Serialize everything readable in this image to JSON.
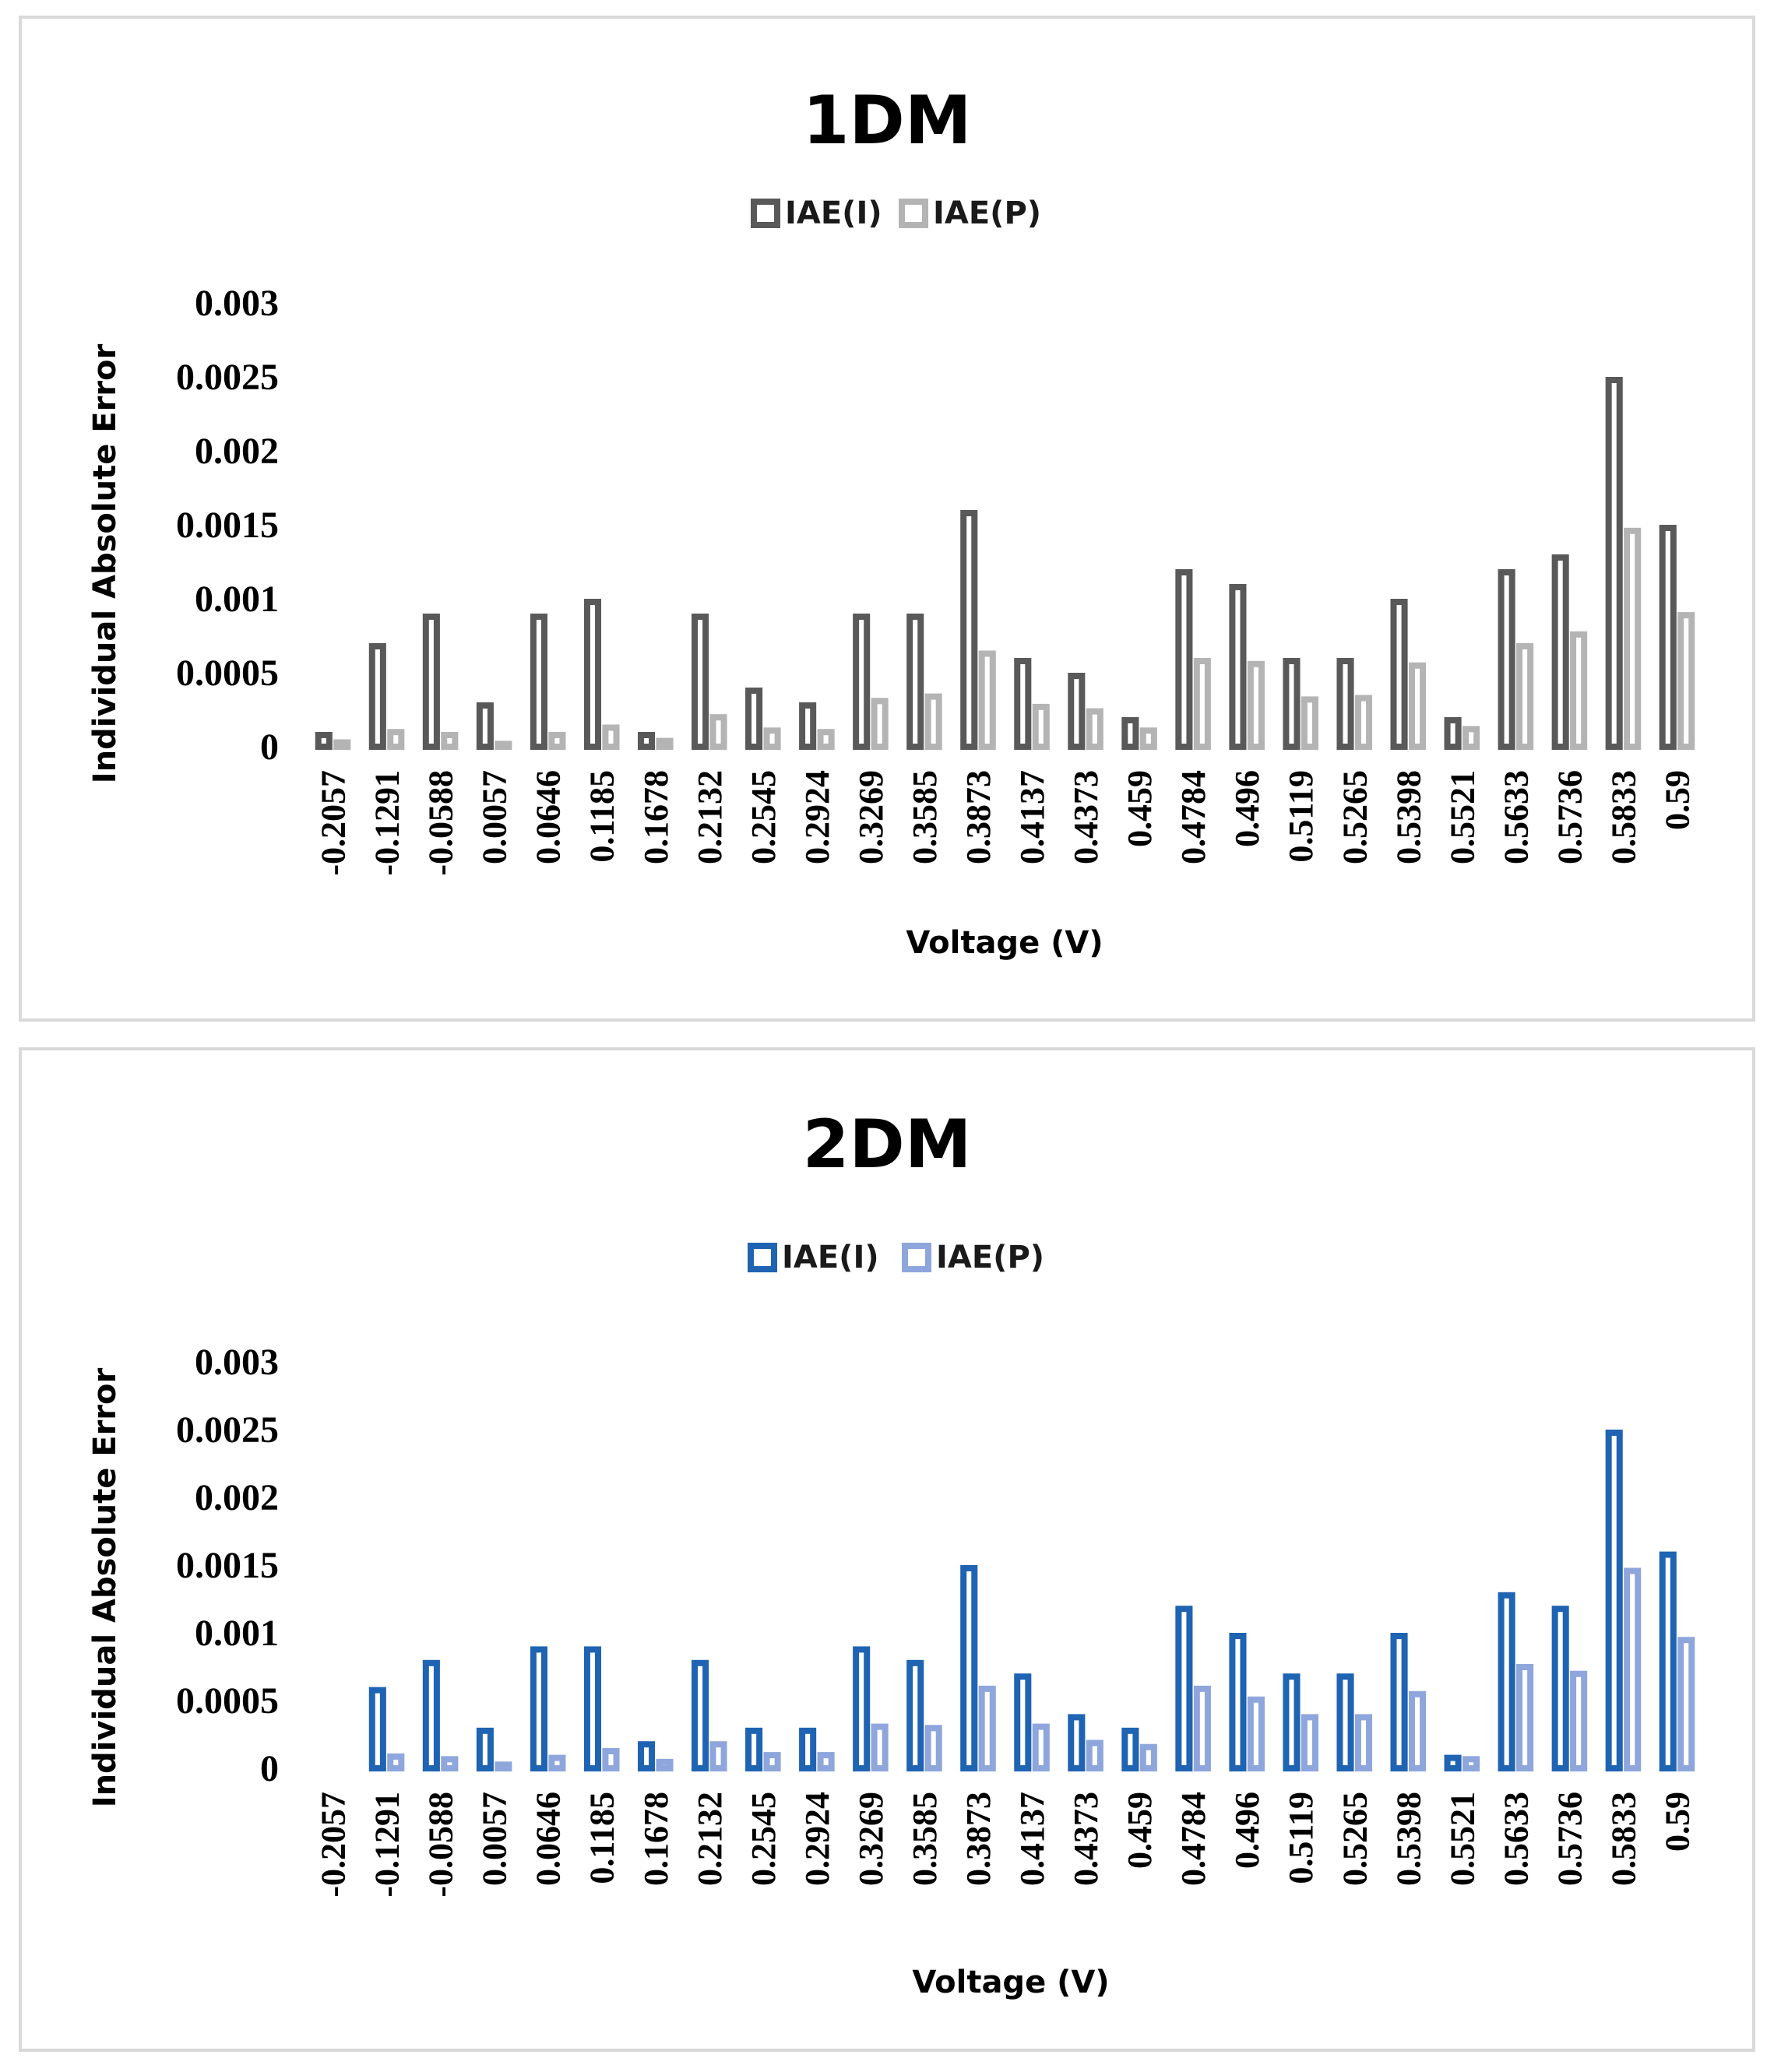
{
  "chart_data": [
    {
      "type": "bar",
      "title": "1DM",
      "xlabel": "Voltage (V)",
      "ylabel": "Individual Absolute Error",
      "ylim": [
        0,
        0.003
      ],
      "yticks": [
        "0",
        "0.0005",
        "0.001",
        "0.0015",
        "0.002",
        "0.0025",
        "0.003"
      ],
      "legend_position": "top-center",
      "grid": false,
      "categories": [
        "-0.2057",
        "-0.1291",
        "-0.0588",
        "0.0057",
        "0.0646",
        "0.1185",
        "0.1678",
        "0.2132",
        "0.2545",
        "0.2924",
        "0.3269",
        "0.3585",
        "0.3873",
        "0.4137",
        "0.4373",
        "0.459",
        "0.4784",
        "0.496",
        "0.5119",
        "0.5265",
        "0.5398",
        "0.5521",
        "0.5633",
        "0.5736",
        "0.5833",
        "0.59"
      ],
      "series": [
        {
          "name": "IAE(I)",
          "color": "#595959",
          "values": [
            0.0001,
            0.0007,
            0.0009,
            0.0003,
            0.0009,
            0.001,
            0.0001,
            0.0009,
            0.0004,
            0.0003,
            0.0009,
            0.0009,
            0.0016,
            0.0006,
            0.0005,
            0.0002,
            0.0012,
            0.0011,
            0.0006,
            0.0006,
            0.001,
            0.0002,
            0.0012,
            0.0013,
            0.0025,
            0.0015
          ]
        },
        {
          "name": "IAE(P)",
          "color": "#b4b4b4",
          "values": [
            5e-05,
            0.00012,
            0.0001,
            4e-05,
            0.0001,
            0.00015,
            6e-05,
            0.00022,
            0.00013,
            0.00012,
            0.00033,
            0.00036,
            0.00065,
            0.00029,
            0.00026,
            0.00013,
            0.0006,
            0.00058,
            0.00034,
            0.00035,
            0.00057,
            0.00014,
            0.0007,
            0.00078,
            0.00148,
            0.00091
          ]
        }
      ]
    },
    {
      "type": "bar",
      "title": "2DM",
      "xlabel": "Voltage (V)",
      "ylabel": "Individual Absolute Error",
      "ylim": [
        0,
        0.003
      ],
      "yticks": [
        "0",
        "0.0005",
        "0.001",
        "0.0015",
        "0.002",
        "0.0025",
        "0.003"
      ],
      "legend_position": "top-center",
      "grid": false,
      "categories": [
        "-0.2057",
        "-0.1291",
        "-0.0588",
        "0.0057",
        "0.0646",
        "0.1185",
        "0.1678",
        "0.2132",
        "0.2545",
        "0.2924",
        "0.3269",
        "0.3585",
        "0.3873",
        "0.4137",
        "0.4373",
        "0.459",
        "0.4784",
        "0.496",
        "0.5119",
        "0.5265",
        "0.5398",
        "0.5521",
        "0.5633",
        "0.5736",
        "0.5833",
        "0.59"
      ],
      "series": [
        {
          "name": "IAE(I)",
          "color": "#1f63b3",
          "values": [
            0,
            0.0006,
            0.0008,
            0.0003,
            0.0009,
            0.0009,
            0.0002,
            0.0008,
            0.0003,
            0.0003,
            0.0009,
            0.0008,
            0.0015,
            0.0007,
            0.0004,
            0.0003,
            0.0012,
            0.001,
            0.0007,
            0.0007,
            0.001,
            0.0001,
            0.0013,
            0.0012,
            0.0025,
            0.0016
          ]
        },
        {
          "name": "IAE(P)",
          "color": "#8ea6dc",
          "values": [
            0,
            0.00011,
            9e-05,
            5e-05,
            0.0001,
            0.00015,
            7e-05,
            0.0002,
            0.00012,
            0.00012,
            0.00033,
            0.00032,
            0.00061,
            0.00033,
            0.00021,
            0.00018,
            0.00061,
            0.00053,
            0.0004,
            0.0004,
            0.00057,
            9e-05,
            0.00077,
            0.00072,
            0.00148,
            0.00097
          ]
        }
      ]
    }
  ]
}
